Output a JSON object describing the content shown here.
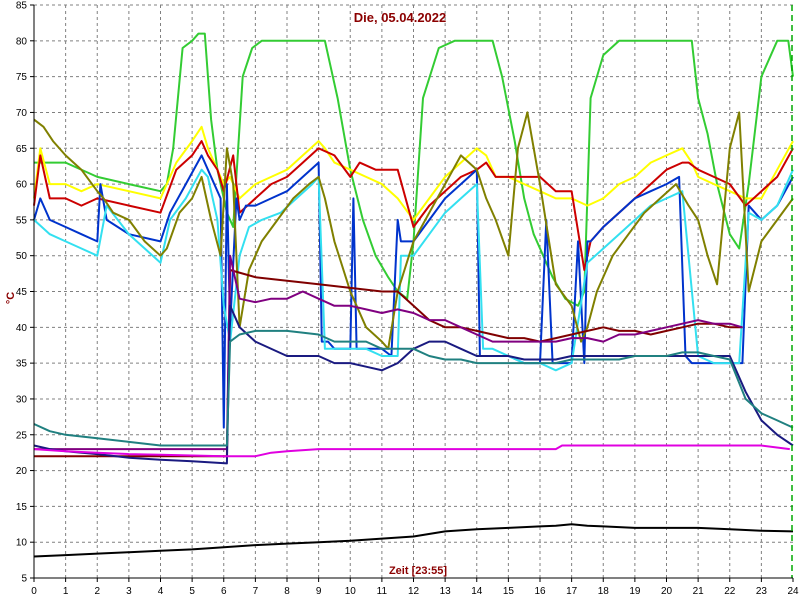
{
  "chart_data": {
    "type": "line",
    "title": "Die, 05.04.2022",
    "xlabel": "Zeit [23:55]",
    "ylabel": "°C",
    "xlim": [
      0,
      24
    ],
    "ylim": [
      5,
      85
    ],
    "xticks": [
      0,
      1,
      2,
      3,
      4,
      5,
      6,
      7,
      8,
      9,
      10,
      11,
      12,
      13,
      14,
      15,
      16,
      17,
      18,
      19,
      20,
      21,
      22,
      23,
      24
    ],
    "yticks": [
      5,
      10,
      15,
      20,
      25,
      30,
      35,
      40,
      45,
      50,
      55,
      60,
      65,
      70,
      75,
      80,
      85
    ],
    "grid": true,
    "colors": {
      "axis": "#000000",
      "grid": "#808080",
      "title": "#8b0000",
      "marker_line": "#00aa00"
    },
    "series": [
      {
        "color": "#33cc33",
        "x": [
          0,
          1,
          2,
          3,
          4,
          4.2,
          4.4,
          4.7,
          5.0,
          5.2,
          5.4,
          5.6,
          5.8,
          6.0,
          6.1,
          6.3,
          6.6,
          6.9,
          7.2,
          7.7,
          8.2,
          8.7,
          9.2,
          9.6,
          10.0,
          10.4,
          10.8,
          11.2,
          11.5,
          11.8,
          12.0,
          12.3,
          12.8,
          13.3,
          13.8,
          14.3,
          14.5,
          14.8,
          15.2,
          15.5,
          15.8,
          16.1,
          16.4,
          16.8,
          17.2,
          17.4,
          17.6,
          18.0,
          18.5,
          19.0,
          19.5,
          20.0,
          20.6,
          20.8,
          21.0,
          21.3,
          21.6,
          22.0,
          22.3,
          22.6,
          23.0,
          23.5,
          23.85,
          24
        ],
        "y": [
          63,
          63,
          61,
          60,
          59,
          60,
          65,
          79,
          80,
          81,
          81,
          69,
          62,
          58,
          56,
          54,
          75,
          79,
          80,
          80,
          80,
          80,
          80,
          72,
          62,
          55,
          50,
          47,
          45,
          44,
          52,
          72,
          79,
          80,
          80,
          80,
          80,
          75,
          66,
          58,
          53,
          50,
          47,
          44,
          43,
          45,
          72,
          78,
          80,
          80,
          80,
          80,
          80,
          80,
          72,
          67,
          60,
          53,
          51,
          60,
          75,
          80,
          80,
          75
        ]
      },
      {
        "color": "#ffff00",
        "x": [
          0,
          0.2,
          0.5,
          1,
          1.5,
          2,
          3,
          4,
          4.5,
          5.0,
          5.3,
          5.5,
          5.8,
          6.0,
          6.2,
          6.5,
          7.0,
          7.5,
          8.0,
          8.5,
          9.0,
          9.2,
          9.5,
          10.0,
          10.5,
          11.0,
          11.5,
          12.0,
          12.5,
          13.0,
          13.5,
          14.0,
          14.3,
          14.6,
          15.0,
          15.5,
          16.0,
          16.5,
          17.0,
          17.5,
          18.0,
          18.5,
          19.0,
          19.5,
          20.0,
          20.5,
          20.8,
          21.0,
          21.5,
          22.0,
          22.5,
          23.0,
          23.5,
          24
        ],
        "y": [
          58,
          65,
          60,
          60,
          59,
          60,
          59,
          58,
          63,
          66,
          68,
          65,
          62,
          60,
          61,
          58,
          60,
          61,
          62,
          64,
          66,
          65,
          63,
          62,
          61,
          60,
          58,
          55,
          58,
          61,
          63,
          65,
          64,
          61,
          61,
          60,
          59,
          58,
          58,
          57,
          58,
          60,
          61,
          63,
          64,
          65,
          63,
          61,
          60,
          59,
          58,
          58,
          62,
          66
        ]
      },
      {
        "color": "#cc0000",
        "x": [
          0,
          0.2,
          0.5,
          1,
          1.5,
          2,
          3,
          4,
          4.5,
          5.0,
          5.3,
          5.5,
          5.8,
          6.0,
          6.3,
          6.5,
          7.0,
          7.5,
          8.0,
          8.5,
          9.0,
          9.5,
          10.0,
          10.3,
          10.8,
          11.5,
          12.0,
          12.5,
          13.0,
          13.5,
          14.0,
          14.3,
          14.6,
          15.0,
          15.5,
          16.0,
          16.5,
          17.0,
          17.4,
          17.6,
          18.0,
          18.5,
          19.0,
          19.5,
          20.0,
          20.5,
          20.7,
          21.0,
          21.5,
          22.0,
          22.5,
          23.0,
          23.5,
          24
        ],
        "y": [
          57,
          64,
          58,
          58,
          57,
          58,
          57,
          56,
          62,
          64,
          66,
          64,
          62,
          59,
          64,
          56,
          58,
          60,
          61,
          63,
          65,
          64,
          61,
          63,
          62,
          62,
          54,
          57,
          59,
          61,
          62,
          63,
          61,
          61,
          61,
          61,
          59,
          59,
          48,
          52,
          54,
          56,
          58,
          60,
          62,
          63,
          63,
          62,
          61,
          60,
          57,
          59,
          61,
          65
        ]
      },
      {
        "color": "#0033cc",
        "x": [
          0,
          0.2,
          0.5,
          1,
          1.5,
          2,
          2.1,
          2.3,
          3,
          4,
          4.3,
          4.8,
          5.3,
          5.5,
          5.9,
          6.0,
          6.1,
          6.2,
          6.4,
          6.5,
          6.7,
          7.0,
          7.5,
          8.0,
          8.5,
          9.0,
          9.1,
          9.3,
          9.5,
          10.0,
          10.1,
          10.2,
          10.5,
          11.0,
          11.3,
          11.5,
          11.6,
          12.0,
          12.5,
          13.0,
          13.5,
          14.0,
          14.1,
          14.3,
          14.5,
          15.0,
          15.5,
          16.0,
          16.2,
          16.4,
          16.6,
          17.0,
          17.2,
          17.4,
          17.5,
          17.6,
          18.0,
          18.5,
          19.0,
          19.5,
          20.0,
          20.4,
          20.6,
          20.8,
          21.0,
          21.5,
          22.0,
          22.4,
          22.6,
          23.0,
          23.5,
          24
        ],
        "y": [
          55,
          58,
          55,
          54,
          53,
          52,
          60,
          55,
          53,
          52,
          56,
          60,
          64,
          62,
          58,
          26,
          60,
          40,
          58,
          55,
          57,
          57,
          58,
          59,
          61,
          63,
          38,
          38,
          37,
          37,
          58,
          37,
          37,
          37,
          36,
          55,
          52,
          52,
          55,
          58,
          60,
          62,
          36,
          36,
          36,
          36,
          35,
          35,
          55,
          35,
          35,
          35,
          52,
          35,
          52,
          52,
          54,
          56,
          58,
          59,
          60,
          61,
          36,
          35,
          35,
          35,
          35,
          35,
          57,
          55,
          57,
          61
        ]
      },
      {
        "color": "#33e0f0",
        "x": [
          0,
          0.5,
          1,
          1.5,
          2,
          2.3,
          3,
          3.5,
          4,
          4.3,
          4.8,
          5.3,
          5.5,
          5.8,
          6.0,
          6.2,
          6.5,
          6.8,
          7.2,
          7.8,
          8.3,
          8.8,
          9.0,
          9.2,
          9.5,
          10.0,
          10.5,
          11.0,
          11.5,
          11.6,
          12.0,
          12.5,
          13.0,
          13.5,
          14.0,
          14.2,
          14.5,
          15.0,
          15.5,
          16.0,
          16.5,
          17.0,
          17.5,
          18.0,
          18.5,
          19.0,
          19.5,
          20.0,
          20.5,
          21.0,
          21.5,
          22.0,
          22.3,
          22.6,
          23.0,
          23.5,
          24
        ],
        "y": [
          55,
          53,
          52,
          51,
          50,
          57,
          53,
          51,
          49,
          55,
          58,
          62,
          61,
          55,
          43,
          38,
          50,
          54,
          55,
          56,
          58,
          60,
          61,
          37,
          37,
          37,
          37,
          36,
          36,
          50,
          50,
          53,
          56,
          58,
          60,
          37,
          37,
          36,
          35,
          35,
          34,
          35,
          49,
          51,
          53,
          55,
          57,
          58,
          59,
          36,
          35,
          35,
          35,
          56,
          55,
          57,
          62
        ]
      },
      {
        "color": "#808000",
        "x": [
          0,
          0.3,
          0.6,
          1,
          1.5,
          2,
          2.2,
          2.5,
          3,
          3.5,
          4,
          4.2,
          4.6,
          5.0,
          5.3,
          5.6,
          5.9,
          6.1,
          6.3,
          6.5,
          6.8,
          7.2,
          7.7,
          8.2,
          8.7,
          9.0,
          9.2,
          9.5,
          10.0,
          10.5,
          11.0,
          11.2,
          11.5,
          12.0,
          12.5,
          13.0,
          13.5,
          14.0,
          14.3,
          14.6,
          15.0,
          15.3,
          15.6,
          16.0,
          16.5,
          17.0,
          17.3,
          17.5,
          17.8,
          18.3,
          18.8,
          19.3,
          19.8,
          20.3,
          20.7,
          21.0,
          21.3,
          21.6,
          22.0,
          22.3,
          22.6,
          23.0,
          23.5,
          24
        ],
        "y": [
          69,
          68,
          66,
          64,
          62,
          59,
          58,
          56,
          55,
          52,
          50,
          51,
          56,
          58,
          61,
          55,
          50,
          65,
          60,
          40,
          48,
          52,
          55,
          58,
          60,
          61,
          58,
          52,
          45,
          40,
          38,
          37,
          45,
          52,
          56,
          60,
          64,
          62,
          58,
          55,
          50,
          65,
          70,
          60,
          46,
          43,
          38,
          40,
          45,
          50,
          53,
          56,
          58,
          60,
          57,
          55,
          50,
          46,
          65,
          70,
          45,
          52,
          55,
          58
        ]
      },
      {
        "color": "#800000",
        "x": [
          0,
          6.1,
          6.2,
          7,
          8,
          9,
          10,
          11,
          11.5,
          12,
          12.5,
          13,
          13.5,
          14,
          14.5,
          15,
          15.5,
          16,
          16.5,
          17,
          17.5,
          18,
          18.5,
          19,
          19.5,
          20,
          20.5,
          21,
          21.5,
          22,
          22.4
        ],
        "y": [
          22,
          22,
          48,
          47,
          46.5,
          46,
          45.5,
          45,
          45,
          43,
          41,
          40,
          40,
          39.5,
          39,
          38.5,
          38.5,
          38,
          38.5,
          39,
          39.5,
          40,
          39.5,
          39.5,
          39,
          39.5,
          40,
          40.5,
          40.5,
          40,
          40
        ]
      },
      {
        "color": "#800080",
        "x": [
          0,
          6.1,
          6.2,
          6.5,
          7,
          7.5,
          8,
          8.5,
          9,
          9.5,
          10,
          10.5,
          11,
          11.5,
          12,
          12.5,
          13,
          13.5,
          14,
          14.5,
          15,
          15.5,
          16,
          16.5,
          17,
          17.5,
          18,
          18.5,
          19,
          19.5,
          20,
          20.5,
          21,
          21.5,
          22,
          22.4
        ],
        "y": [
          23,
          23,
          50,
          44,
          43.5,
          44,
          44,
          45,
          44,
          43,
          43,
          42.5,
          42,
          42.5,
          42,
          41,
          41,
          40,
          39,
          38,
          38,
          38,
          38,
          38,
          38.5,
          38.5,
          38,
          39,
          39,
          39.5,
          40,
          40.5,
          41,
          40.5,
          40.5,
          40
        ]
      },
      {
        "color": "#1a1a80",
        "x": [
          0,
          0.5,
          1,
          2,
          3,
          4,
          5,
          6.1,
          6.2,
          6.5,
          7,
          8,
          9,
          9.5,
          10,
          10.5,
          11,
          11.5,
          12,
          12.5,
          13,
          13.5,
          14,
          14.5,
          15,
          15.5,
          16,
          16.5,
          17,
          17.5,
          18,
          18.5,
          19,
          19.5,
          20,
          20.5,
          21,
          21.5,
          22,
          22.5,
          23,
          23.5,
          24
        ],
        "y": [
          23.5,
          23,
          22.7,
          22.3,
          21.8,
          21.5,
          21.3,
          21,
          43,
          40,
          38,
          36,
          36,
          35,
          35,
          34.5,
          34,
          35,
          37,
          38,
          38,
          37,
          36,
          36,
          36,
          35.5,
          35.5,
          35.5,
          36,
          36,
          36,
          36,
          36,
          36,
          36,
          36,
          36,
          36,
          36,
          31,
          27,
          25,
          23.5
        ]
      },
      {
        "color": "#208080",
        "x": [
          0,
          0.5,
          1,
          2,
          3,
          4,
          5,
          6.1,
          6.2,
          6.5,
          7,
          8,
          9,
          9.5,
          10,
          10.5,
          11,
          11.5,
          12,
          12.5,
          13,
          13.5,
          14,
          14.5,
          15,
          15.5,
          16,
          16.5,
          17,
          17.5,
          18,
          18.5,
          19,
          19.5,
          20,
          20.5,
          21,
          21.5,
          22,
          22.5,
          23,
          23.5,
          24
        ],
        "y": [
          26.5,
          25.5,
          25,
          24.5,
          24,
          23.5,
          23.5,
          23.5,
          38,
          39,
          39.5,
          39.5,
          39,
          38,
          38,
          38,
          37,
          37,
          37,
          36,
          35.5,
          35.5,
          35,
          35,
          35,
          35,
          35,
          35,
          35.5,
          35.5,
          35.5,
          35.5,
          36,
          36,
          36,
          36.5,
          36.5,
          36,
          35.5,
          30,
          28,
          27,
          26
        ]
      },
      {
        "color": "#e000e0",
        "x": [
          0,
          1,
          2,
          3,
          4,
          5,
          6,
          7,
          7.5,
          8,
          9,
          10,
          11,
          12,
          13,
          14,
          15,
          16,
          16.5,
          16.7,
          17,
          18,
          19,
          20,
          21,
          22,
          23,
          23.9
        ],
        "y": [
          23,
          22.7,
          22.5,
          22.3,
          22.2,
          22.1,
          22,
          22,
          22.5,
          22.7,
          23,
          23,
          23,
          23,
          23,
          23,
          23,
          23,
          23,
          23.5,
          23.5,
          23.5,
          23.5,
          23.5,
          23.5,
          23.5,
          23.5,
          23
        ]
      },
      {
        "color": "#000000",
        "x": [
          0,
          1,
          2,
          3,
          4,
          5,
          6,
          7,
          8,
          9,
          10,
          11,
          12,
          13,
          14,
          15,
          16,
          16.5,
          17,
          17.5,
          18,
          19,
          20,
          21,
          22,
          23,
          24
        ],
        "y": [
          8,
          8.2,
          8.4,
          8.6,
          8.8,
          9,
          9.3,
          9.6,
          9.8,
          10,
          10.2,
          10.5,
          10.8,
          11.5,
          11.8,
          12,
          12.2,
          12.3,
          12.5,
          12.3,
          12.2,
          12,
          12,
          12,
          11.8,
          11.6,
          11.5
        ]
      }
    ],
    "vline_x": 24
  }
}
